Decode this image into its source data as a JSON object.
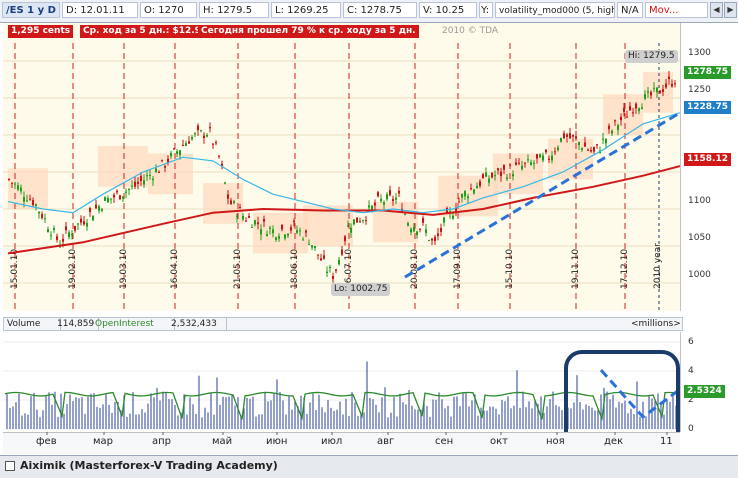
{
  "topbar": {
    "symbol": "/ES 1 у D",
    "date": "D: 12.01.11",
    "open": "O: 1270",
    "high": "H: 1279.5",
    "low": "L: 1269.25",
    "close": "C: 1278.75",
    "value": "V: 10.25",
    "y_label": "Y:",
    "indicator": "volatility_mod000 (5, high_minus_low, 1)",
    "na": "N/A",
    "mov": "Mov..."
  },
  "chart_info": {
    "cents": "1,295 cents",
    "avg_move": "Ср. ход за 5 дн.: $12.95",
    "today_pct": "Сегодня прошел 79 % к ср. ходу за 5 дн.",
    "copyright": "2010 © TDA"
  },
  "price_labels": {
    "high": "Hi: 1279.5",
    "low": "Lo: 1002.75",
    "last": "1278.75",
    "blue_ma": "1228.75",
    "red_ma": "1158.12"
  },
  "price_ticks": [
    "1300",
    "1250",
    "1200",
    "1150",
    "1100",
    "1050",
    "1000"
  ],
  "date_marks": [
    "15.01.10",
    "19.02.10",
    "19.03.10",
    "16.04.10",
    "21.05.10",
    "18.06.10",
    "16.07.10",
    "20.08.10",
    "17.09.10",
    "15.10.10",
    "19.11.10",
    "17.12.10"
  ],
  "year_mark": "2010 year",
  "volume_header": {
    "volume_label": "Volume",
    "volume_value": "114,859",
    "oi_label": "OpenInterest",
    "oi_value": "2,532,433",
    "units": "<millions>"
  },
  "volume_ticks": [
    "6",
    "4",
    "2",
    "0"
  ],
  "volume_last": "2.5324",
  "months": [
    "фев",
    "мар",
    "апр",
    "май",
    "июн",
    "июл",
    "авг",
    "сен",
    "окт",
    "ноя",
    "дек",
    "11"
  ],
  "status": {
    "text": "Aiximik (Masterforex-V Trading Academy)"
  },
  "colors": {
    "up": "#1aa01a",
    "down": "#cc1111",
    "red_ma": "#d01818",
    "blue_ma": "#38b8e8",
    "trend": "#2a72d8",
    "volume": "#4a60a8",
    "oi": "#2b8a2b",
    "circle": "#1b3c6b"
  }
}
